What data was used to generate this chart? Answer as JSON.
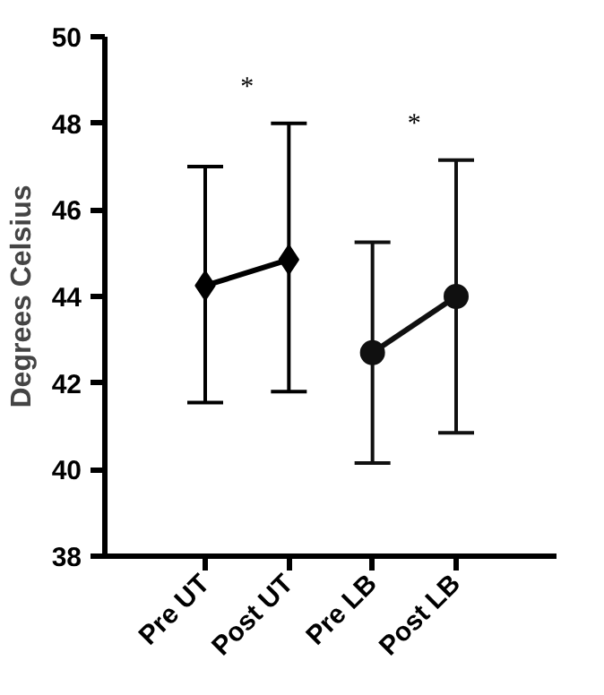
{
  "chart_data": {
    "type": "line",
    "ylabel": "Degrees Celsius",
    "categories": [
      "Pre UT",
      "Post UT",
      "Pre LB",
      "Post LB"
    ],
    "series": [
      {
        "color": "#000000",
        "marker": "diamond",
        "values": [
          44.25,
          44.85,
          null,
          null
        ],
        "errors": [
          [
            41.55,
            47.0
          ],
          [
            41.8,
            48.0
          ],
          null,
          null
        ]
      },
      {
        "color": "#101010",
        "marker": "circle",
        "values": [
          null,
          null,
          42.7,
          44.0
        ],
        "errors": [
          null,
          null,
          [
            40.15,
            45.25
          ],
          [
            40.85,
            47.15
          ]
        ]
      }
    ],
    "ylim": [
      38,
      50
    ],
    "yticks": [
      38,
      40,
      42,
      44,
      46,
      48,
      50
    ],
    "grid": false,
    "annotations": [
      "*",
      "*"
    ]
  }
}
